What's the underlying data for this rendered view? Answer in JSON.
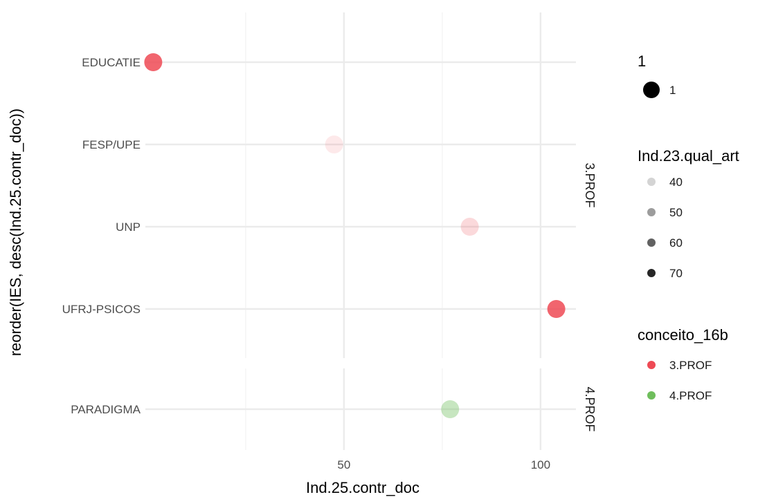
{
  "chart_data": {
    "type": "scatter",
    "xlabel": "Ind.25.contr_doc",
    "ylabel": "reorder(IES, desc(Ind.25.contr_doc))",
    "xlim": [
      -0.5,
      109
    ],
    "x_ticks": [
      50,
      100
    ],
    "x_minor": [
      25,
      75
    ],
    "grid": true,
    "legend_position": "right",
    "facets": [
      {
        "label": "3.PROF",
        "categories": [
          "EDUCATIE",
          "FESP/UPE",
          "UNP",
          "UFRJ-PSICOS"
        ],
        "points": [
          {
            "category": "EDUCATIE",
            "x": 1.5,
            "qual_art": 70,
            "conceito": "3.PROF"
          },
          {
            "category": "FESP/UPE",
            "x": 47.5,
            "qual_art": 38,
            "conceito": "3.PROF"
          },
          {
            "category": "UNP",
            "x": 82,
            "qual_art": 42,
            "conceito": "3.PROF"
          },
          {
            "category": "UFRJ-PSICOS",
            "x": 104,
            "qual_art": 70,
            "conceito": "3.PROF"
          }
        ]
      },
      {
        "label": "4.PROF",
        "categories": [
          "PARADIGMA"
        ],
        "points": [
          {
            "category": "PARADIGMA",
            "x": 77,
            "qual_art": 50,
            "conceito": "4.PROF"
          }
        ]
      }
    ],
    "legends": {
      "size": {
        "title": "1",
        "entries": [
          "1"
        ]
      },
      "alpha": {
        "title": "Ind.23.qual_art",
        "entries": [
          "40",
          "50",
          "60",
          "70"
        ]
      },
      "color": {
        "title": "conceito_16b",
        "entries": [
          {
            "label": "3.PROF",
            "color": "#F8766D"
          },
          {
            "label": "4.PROF",
            "color": "#7CAE00"
          }
        ]
      }
    },
    "colors": {
      "3.PROF": "#ee4a55",
      "4.PROF": "#6fbe5c"
    }
  }
}
